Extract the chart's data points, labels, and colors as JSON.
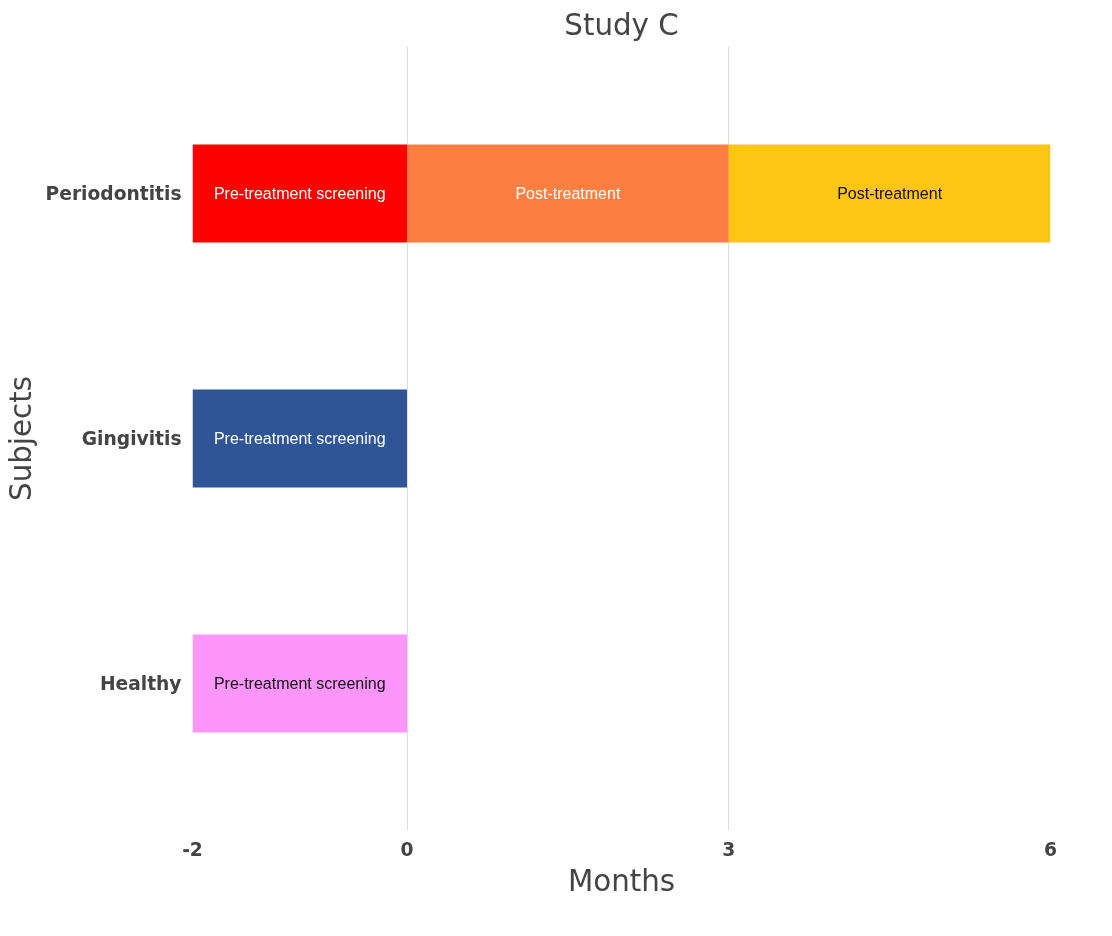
{
  "chart_data": {
    "type": "bar",
    "orientation": "horizontal",
    "title": "Study C",
    "xlabel": "Months",
    "ylabel": "Subjects",
    "categories": [
      "Periodontitis",
      "Gingivitis",
      "Healthy"
    ],
    "series": [
      {
        "name": "Pre-treatment screening",
        "colors": [
          "#ff0000",
          "#2f5597",
          "#fc96fc"
        ],
        "base": [
          -2,
          -2,
          -2
        ],
        "values": [
          2,
          2,
          2
        ]
      },
      {
        "name": "Post-treatment",
        "colors": [
          "#fe7f41",
          null,
          null
        ],
        "base": [
          0,
          null,
          null
        ],
        "values": [
          3,
          null,
          null
        ]
      },
      {
        "name": "Post-treatment",
        "colors": [
          "#fdc514",
          null,
          null
        ],
        "base": [
          3,
          null,
          null
        ],
        "values": [
          3,
          null,
          null
        ]
      }
    ],
    "xlim": [
      -2,
      6
    ],
    "xticks": [
      -2,
      0,
      3,
      6
    ],
    "grid": "x"
  }
}
